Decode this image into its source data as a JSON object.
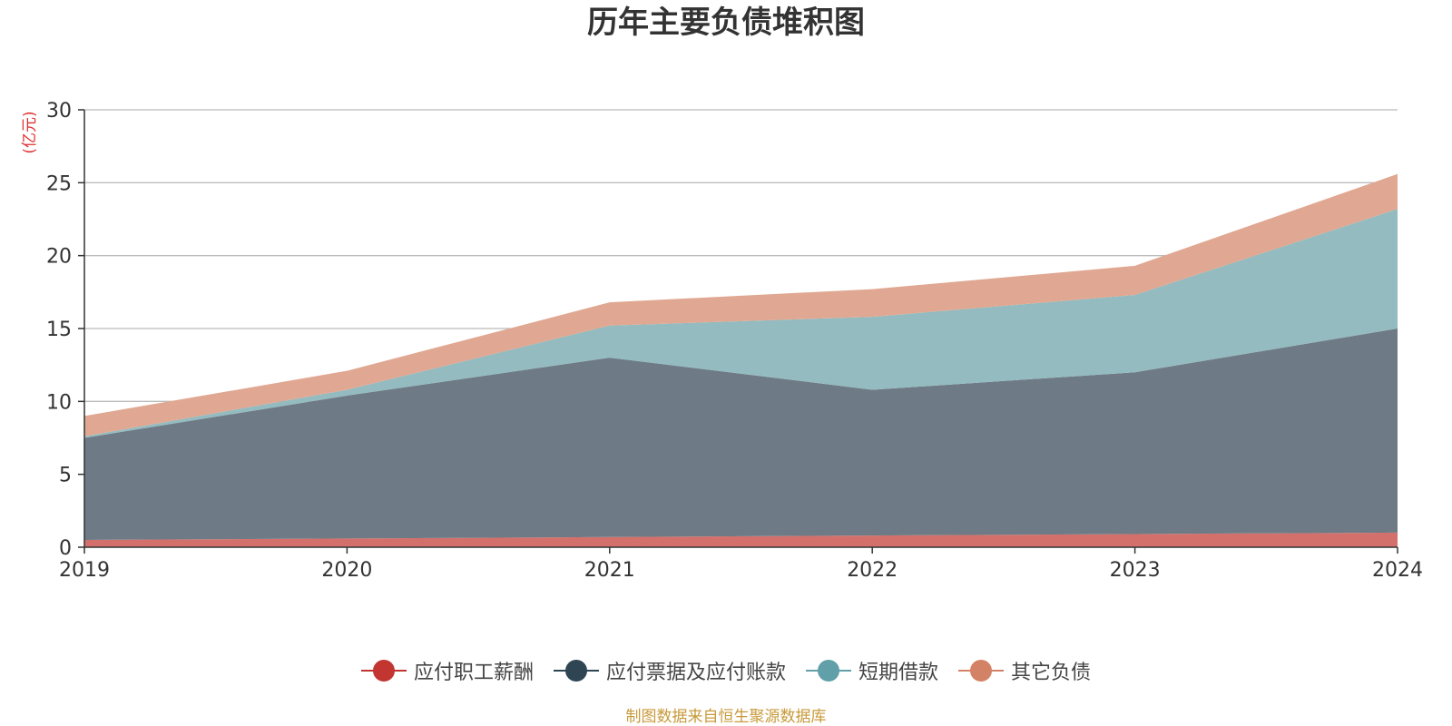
{
  "chart_data": {
    "type": "area",
    "stacked": true,
    "title": "历年主要负债堆积图",
    "ylabel": "(亿元)",
    "xlabel": "",
    "categories": [
      "2019",
      "2020",
      "2021",
      "2022",
      "2023",
      "2024"
    ],
    "ylim": [
      0,
      30
    ],
    "yticks": [
      0,
      5,
      10,
      15,
      20,
      25,
      30
    ],
    "grid": true,
    "legend_position": "bottom",
    "series": [
      {
        "name": "应付职工薪酬",
        "color": "#c23531",
        "fill": "#d4706b",
        "values": [
          0.5,
          0.6,
          0.7,
          0.8,
          0.9,
          1.0
        ]
      },
      {
        "name": "应付票据及应付账款",
        "color": "#2f4554",
        "fill": "#6e7b86",
        "values": [
          7.0,
          9.8,
          12.3,
          10.0,
          11.1,
          14.0
        ]
      },
      {
        "name": "短期借款",
        "color": "#61a0a8",
        "fill": "#93bbc0",
        "values": [
          0.1,
          0.4,
          2.2,
          5.0,
          5.3,
          8.2
        ]
      },
      {
        "name": "其它负债",
        "color": "#d48265",
        "fill": "#e0a892",
        "values": [
          1.4,
          1.3,
          1.6,
          1.9,
          2.0,
          2.4
        ]
      }
    ]
  },
  "source_note": "制图数据来自恒生聚源数据库",
  "colors": {
    "title": "#333333",
    "axis": "#333333",
    "grid": "#bbbbbb",
    "ylabel": "#e03030",
    "source": "#c89a3a"
  }
}
